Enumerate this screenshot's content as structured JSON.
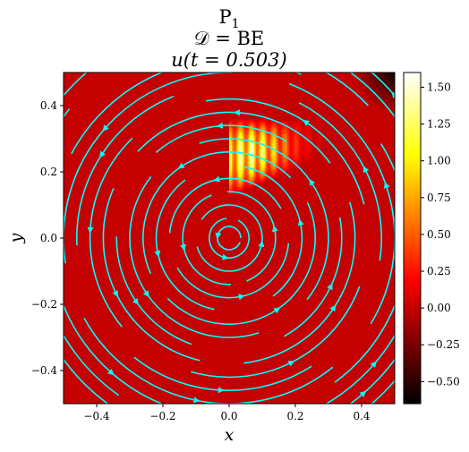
{
  "chart_data": {
    "type": "heatmap",
    "title_lines": [
      "P",
      "𝒟 = BE",
      "u(t = 0.503)"
    ],
    "title_line1_subscript": "1",
    "xlabel": "x",
    "ylabel": "y",
    "xlim": [
      -0.5,
      0.5
    ],
    "ylim": [
      -0.5,
      0.5
    ],
    "x_ticks": [
      -0.4,
      -0.2,
      0.0,
      0.2,
      0.4
    ],
    "x_tick_labels": [
      "−0.4",
      "−0.2",
      "0.0",
      "0.2",
      "0.4"
    ],
    "y_ticks": [
      -0.4,
      -0.2,
      0.0,
      0.2,
      0.4
    ],
    "y_tick_labels": [
      "−0.4",
      "−0.2",
      "0.0",
      "0.2",
      "0.4"
    ],
    "colorbar": {
      "colormap": "hot",
      "range": [
        -0.65,
        1.6
      ],
      "ticks": [
        -0.5,
        -0.25,
        0.0,
        0.25,
        0.5,
        0.75,
        1.0,
        1.25,
        1.5
      ],
      "tick_labels": [
        "−0.50",
        "−0.25",
        "0.00",
        "0.25",
        "0.50",
        "0.75",
        "1.00",
        "1.25",
        "1.50"
      ]
    },
    "field": {
      "background_value": 0.0,
      "feature": "striped high-value band in upper-right quadrant",
      "feature_extent_x": [
        0.0,
        0.3
      ],
      "feature_extent_y": [
        0.08,
        0.37
      ],
      "feature_peak_value": 1.55,
      "corner_min_value": -0.6
    },
    "streamlines": {
      "color": "#00ffff",
      "pattern": "concentric circles, counter-clockwise rotation",
      "center": [
        0.0,
        0.0
      ],
      "radii": [
        0.035,
        0.06,
        0.1,
        0.14,
        0.18,
        0.22,
        0.26,
        0.3,
        0.34,
        0.38,
        0.42,
        0.46,
        0.5,
        0.54,
        0.58,
        0.62,
        0.66
      ]
    },
    "grid": false
  }
}
